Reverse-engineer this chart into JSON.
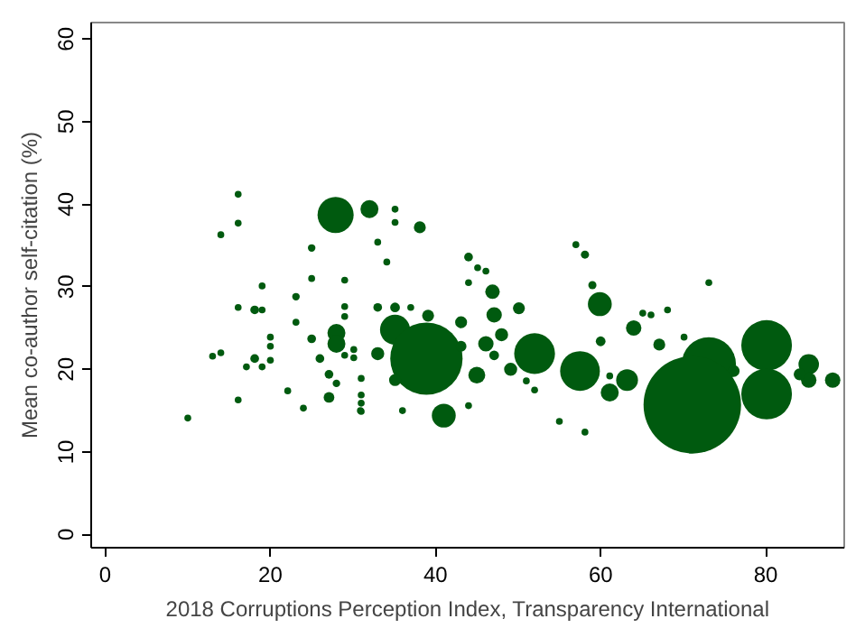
{
  "chart_data": {
    "type": "bubble",
    "xlabel": "2018 Corruptions Perception Index, Transparency International",
    "ylabel": "Mean co-author self-citation (%)",
    "xlim": [
      -1.7,
      89.5
    ],
    "ylim": [
      -1.6,
      62
    ],
    "xticks": [
      0,
      20,
      40,
      60,
      80
    ],
    "yticks": [
      0,
      10,
      20,
      30,
      40,
      50,
      60
    ],
    "grid": false,
    "series": [
      {
        "color": "#005a0f",
        "x": [
          16.1,
          16.1,
          14.0,
          27.9,
          25.0,
          25.0,
          29.0,
          19.0,
          23.1,
          16.1,
          18.1,
          19.0,
          29.0,
          29.0,
          23.1,
          28.0,
          28.0,
          25.0,
          20.0,
          20.0,
          20.0,
          18.1,
          14.0,
          13.0,
          17.1,
          19.0,
          26.0,
          27.1,
          28.0,
          27.1,
          22.1,
          16.1,
          24.0,
          10.0,
          31.0,
          29.0,
          30.1,
          30.1,
          31.0,
          31.0,
          31.0,
          32.0,
          35.1,
          35.1,
          38.1,
          33.0,
          34.1,
          44.0,
          45.1,
          46.1,
          57.0,
          58.1,
          46.9,
          47.1,
          50.1,
          44.0,
          33.0,
          35.1,
          37.0,
          39.1,
          43.1,
          35.1,
          38.9,
          43.1,
          48.0,
          46.1,
          47.1,
          45.0,
          49.1,
          52.0,
          33.0,
          35.1,
          41.0,
          36.0,
          44.0,
          30.9,
          57.5,
          60.0,
          59.9,
          59.0,
          61.1,
          55.0,
          58.1,
          51.0,
          52.0,
          73.1,
          64.0,
          67.1,
          70.1,
          65.1,
          66.1,
          68.1,
          63.2,
          61.1,
          73.1,
          80.1,
          80.1,
          85.2,
          85.2,
          88.1,
          84.1,
          76.1,
          71.1
        ],
        "values": [
          41.2,
          37.7,
          36.3,
          38.7,
          34.7,
          31.0,
          30.8,
          30.1,
          28.8,
          27.5,
          27.2,
          27.2,
          27.6,
          26.4,
          25.7,
          24.4,
          23.1,
          23.7,
          23.9,
          22.8,
          21.1,
          21.3,
          22.0,
          21.6,
          20.3,
          20.3,
          21.3,
          19.4,
          18.3,
          16.6,
          17.4,
          16.3,
          15.3,
          14.1,
          14.9,
          21.7,
          22.4,
          21.4,
          18.9,
          16.9,
          15.9,
          39.4,
          39.4,
          37.8,
          37.2,
          35.4,
          33.0,
          33.6,
          32.3,
          31.9,
          35.1,
          33.9,
          29.4,
          26.6,
          27.4,
          30.5,
          27.5,
          27.5,
          27.5,
          26.5,
          25.7,
          24.8,
          21.3,
          22.8,
          24.2,
          23.1,
          21.7,
          19.3,
          20.0,
          21.9,
          21.9,
          18.7,
          14.4,
          15.0,
          15.6,
          15.0,
          19.8,
          23.4,
          27.9,
          30.2,
          17.2,
          13.7,
          12.4,
          18.6,
          17.5,
          30.5,
          25.0,
          23.0,
          23.9,
          26.8,
          26.6,
          27.2,
          18.7,
          19.2,
          20.6,
          22.9,
          17.0,
          20.6,
          18.7,
          18.7,
          19.4,
          19.8,
          15.7
        ],
        "sizes": [
          0.005,
          0.005,
          0.005,
          0.137,
          0.006,
          0.005,
          0.005,
          0.005,
          0.006,
          0.005,
          0.008,
          0.005,
          0.005,
          0.005,
          0.005,
          0.034,
          0.034,
          0.008,
          0.005,
          0.005,
          0.005,
          0.008,
          0.005,
          0.005,
          0.005,
          0.005,
          0.008,
          0.008,
          0.006,
          0.012,
          0.005,
          0.005,
          0.005,
          0.005,
          0.005,
          0.005,
          0.005,
          0.005,
          0.005,
          0.005,
          0.005,
          0.034,
          0.005,
          0.005,
          0.015,
          0.005,
          0.005,
          0.008,
          0.005,
          0.005,
          0.005,
          0.007,
          0.022,
          0.025,
          0.015,
          0.005,
          0.008,
          0.01,
          0.005,
          0.015,
          0.015,
          0.095,
          0.55,
          0.012,
          0.018,
          0.025,
          0.01,
          0.03,
          0.018,
          0.175,
          0.018,
          0.015,
          0.06,
          0.005,
          0.005,
          0.005,
          0.166,
          0.01,
          0.06,
          0.007,
          0.034,
          0.005,
          0.005,
          0.005,
          0.005,
          0.005,
          0.025,
          0.015,
          0.005,
          0.005,
          0.005,
          0.005,
          0.05,
          0.005,
          0.31,
          0.27,
          0.27,
          0.044,
          0.025,
          0.025,
          0.015,
          0.015,
          1
        ]
      }
    ]
  }
}
